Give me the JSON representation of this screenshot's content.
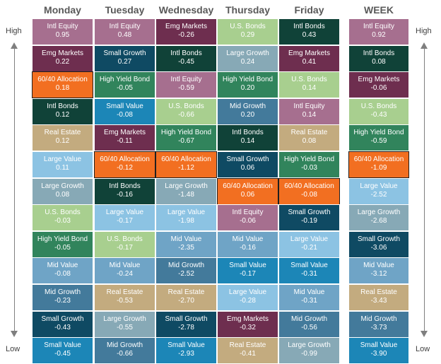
{
  "chart_data": {
    "type": "table",
    "columns": [
      "Monday",
      "Tuesday",
      "Wednesday",
      "Thursday",
      "Friday",
      "WEEK"
    ],
    "side_labels": {
      "high": "High",
      "low": "Low"
    },
    "highlight": "60/40 Allocation",
    "colors": {
      "Intl Equity": "#a66f8f",
      "Emg Markets": "#6e2e4f",
      "60/40 Allocation": "#f26f21",
      "Intl Bonds": "#104238",
      "Real Estate": "#c3ab7f",
      "Large Value": "#8cc3e3",
      "Large Growth": "#87a9b6",
      "U.S. Bonds": "#a8cf8f",
      "High Yield Bond": "#31845c",
      "Mid Value": "#6fa4c6",
      "Mid Growth": "#437a9b",
      "Small Growth": "#0f4a63",
      "Small Value": "#1c86b7"
    },
    "data": [
      [
        [
          "Intl Equity",
          "0.95"
        ],
        [
          "Emg Markets",
          "0.22"
        ],
        [
          "60/40 Allocation",
          "0.18"
        ],
        [
          "Intl Bonds",
          "0.12"
        ],
        [
          "Real Estate",
          "0.12"
        ],
        [
          "Large Value",
          "0.11"
        ],
        [
          "Large Growth",
          "0.08"
        ],
        [
          "U.S. Bonds",
          "-0.03"
        ],
        [
          "High Yield Bond",
          "-0.05"
        ],
        [
          "Mid Value",
          "-0.08"
        ],
        [
          "Mid Growth",
          "-0.23"
        ],
        [
          "Small Growth",
          "-0.43"
        ],
        [
          "Small Value",
          "-0.45"
        ]
      ],
      [
        [
          "Intl Equity",
          "0.48"
        ],
        [
          "Small Growth",
          "0.27"
        ],
        [
          "High Yield Bond",
          "-0.05"
        ],
        [
          "Small Value",
          "-0.08"
        ],
        [
          "Emg Markets",
          "-0.11"
        ],
        [
          "60/40 Allocation",
          "-0.12"
        ],
        [
          "Intl Bonds",
          "-0.16"
        ],
        [
          "Large Value",
          "-0.17"
        ],
        [
          "U.S. Bonds",
          "-0.17"
        ],
        [
          "Mid Value",
          "-0.24"
        ],
        [
          "Real Estate",
          "-0.53"
        ],
        [
          "Large Growth",
          "-0.55"
        ],
        [
          "Mid Growth",
          "-0.66"
        ]
      ],
      [
        [
          "Emg Markets",
          "-0.26"
        ],
        [
          "Intl Bonds",
          "-0.45"
        ],
        [
          "Intl Equity",
          "-0.59"
        ],
        [
          "U.S. Bonds",
          "-0.66"
        ],
        [
          "High Yield Bond",
          "-0.67"
        ],
        [
          "60/40 Allocation",
          "-1.12"
        ],
        [
          "Large Growth",
          "-1.48"
        ],
        [
          "Large Value",
          "-1.98"
        ],
        [
          "Mid Value",
          "-2.35"
        ],
        [
          "Mid Growth",
          "-2.52"
        ],
        [
          "Real Estate",
          "-2.70"
        ],
        [
          "Small Growth",
          "-2.78"
        ],
        [
          "Small Value",
          "-2.93"
        ]
      ],
      [
        [
          "U.S. Bonds",
          "0.29"
        ],
        [
          "Large Growth",
          "0.24"
        ],
        [
          "High Yield Bond",
          "0.20"
        ],
        [
          "Mid Growth",
          "0.20"
        ],
        [
          "Intl Bonds",
          "0.14"
        ],
        [
          "Small Growth",
          "0.06"
        ],
        [
          "60/40 Allocation",
          "0.06"
        ],
        [
          "Intl Equity",
          "-0.06"
        ],
        [
          "Mid Value",
          "-0.16"
        ],
        [
          "Small Value",
          "-0.17"
        ],
        [
          "Large Value",
          "-0.28"
        ],
        [
          "Emg Markets",
          "-0.32"
        ],
        [
          "Real Estate",
          "-0.41"
        ]
      ],
      [
        [
          "Intl Bonds",
          "0.43"
        ],
        [
          "Emg Markets",
          "0.41"
        ],
        [
          "U.S. Bonds",
          "0.14"
        ],
        [
          "Intl Equity",
          "0.14"
        ],
        [
          "Real Estate",
          "0.08"
        ],
        [
          "High Yield Bond",
          "-0.03"
        ],
        [
          "60/40 Allocation",
          "-0.08"
        ],
        [
          "Small Growth",
          "-0.19"
        ],
        [
          "Large Value",
          "-0.21"
        ],
        [
          "Small Value",
          "-0.31"
        ],
        [
          "Mid Value",
          "-0.31"
        ],
        [
          "Mid Growth",
          "-0.56"
        ],
        [
          "Large Growth",
          "-0.99"
        ]
      ],
      [
        [
          "Intl Equity",
          "0.92"
        ],
        [
          "Intl Bonds",
          "0.08"
        ],
        [
          "Emg Markets",
          "-0.06"
        ],
        [
          "U.S. Bonds",
          "-0.43"
        ],
        [
          "High Yield Bond",
          "-0.59"
        ],
        [
          "60/40 Allocation",
          "-1.09"
        ],
        [
          "Large Value",
          "-2.52"
        ],
        [
          "Large Growth",
          "-2.68"
        ],
        [
          "Small Growth",
          "-3.06"
        ],
        [
          "Mid Value",
          "-3.12"
        ],
        [
          "Real Estate",
          "-3.43"
        ],
        [
          "Mid Growth",
          "-3.73"
        ],
        [
          "Small Value",
          "-3.90"
        ]
      ]
    ]
  }
}
